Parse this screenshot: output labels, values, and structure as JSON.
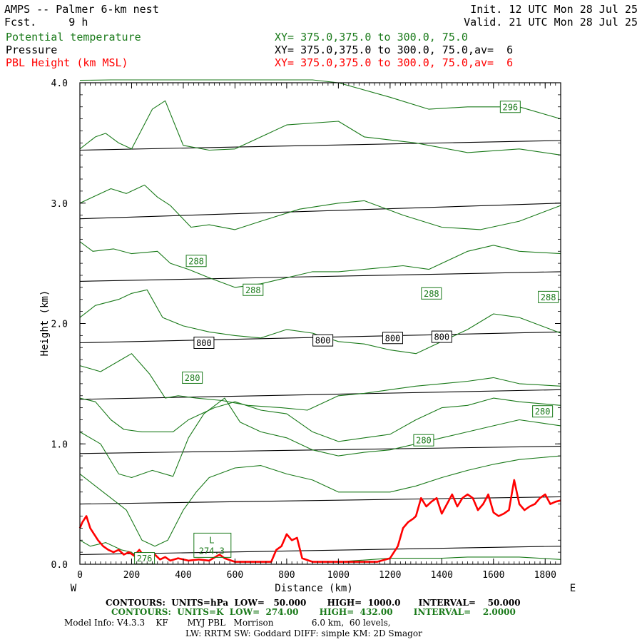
{
  "header": {
    "title": "AMPS -- Palmer 6-km nest",
    "fcst": "Fcst.     9 h",
    "init": "Init. 12 UTC Mon 28 Jul 25",
    "valid": "Valid. 21 UTC Mon 28 Jul 25",
    "fields": [
      {
        "name": "Potential temperature",
        "xy": "XY= 375.0,375.0 to 300.0, 75.0",
        "color": "#1a7a1a"
      },
      {
        "name": "Pressure",
        "xy": "XY= 375.0,375.0 to 300.0, 75.0,av=  6",
        "color": "#000000"
      },
      {
        "name": "PBL Height (km MSL)",
        "xy": "XY= 375.0,375.0 to 300.0, 75.0,av=  6",
        "color": "#ff0000"
      }
    ]
  },
  "footer": {
    "contours_p": "CONTOURS:  UNITS=hPa  LOW=   50.000       HIGH=  1000.0      INTERVAL=    50.000",
    "contours_t": "CONTOURS:  UNITS=K  LOW=  274.00       HIGH=  432.00       INTERVAL=    2.0000",
    "model1": "Model Info: V4.3.3    KF       MYJ PBL   Morrison              6.0 km,  60 levels,",
    "model2": "LW: RRTM SW: Goddard DIFF: simple KM: 2D Smagor"
  },
  "chart_data": {
    "type": "line",
    "xlabel": "Distance (km)",
    "ylabel": "Height (km)",
    "xlim": [
      0,
      1860
    ],
    "ylim": [
      0,
      4.0
    ],
    "x_ticks": [
      0,
      200,
      400,
      600,
      800,
      1000,
      1200,
      1400,
      1600,
      1800
    ],
    "x_tick_labels": [
      "0",
      "200",
      "400",
      "600",
      "800",
      "1000",
      "1200",
      "1400",
      "1600",
      "1800"
    ],
    "y_ticks": [
      0,
      1.0,
      2.0,
      3.0,
      4.0
    ],
    "y_tick_labels": [
      "0.0",
      "1.0",
      "2.0",
      "3.0",
      "4.0"
    ],
    "left_end_label": "W",
    "right_end_label": "E",
    "low_label": "L",
    "low_value": "274.3",
    "pressure_contours": [
      {
        "x": [
          0,
          1860
        ],
        "y": [
          3.44,
          3.52
        ]
      },
      {
        "x": [
          0,
          1860
        ],
        "y": [
          2.87,
          3.0
        ]
      },
      {
        "x": [
          0,
          1860
        ],
        "y": [
          2.35,
          2.43
        ]
      },
      {
        "x": [
          0,
          1860
        ],
        "y": [
          1.84,
          1.93
        ]
      },
      {
        "x": [
          0,
          1860
        ],
        "y": [
          1.37,
          1.45
        ]
      },
      {
        "x": [
          0,
          1860
        ],
        "y": [
          0.92,
          0.98
        ]
      },
      {
        "x": [
          0,
          1860
        ],
        "y": [
          0.5,
          0.56
        ]
      },
      {
        "x": [
          0,
          1860
        ],
        "y": [
          0.08,
          0.15
        ]
      }
    ],
    "pressure_labels": [
      {
        "x": 480,
        "y": 1.84,
        "text": "800"
      },
      {
        "x": 940,
        "y": 1.86,
        "text": "800"
      },
      {
        "x": 1210,
        "y": 1.88,
        "text": "800"
      },
      {
        "x": 1400,
        "y": 1.89,
        "text": "800"
      }
    ],
    "theta_contours": [
      {
        "x": [
          0,
          120,
          250,
          320,
          430,
          620,
          900,
          1000,
          1200,
          1350,
          1500,
          1700,
          1860
        ],
        "y": [
          4.02,
          4.05,
          4.04,
          4.03,
          4.05,
          4.08,
          4.03,
          4.0,
          3.88,
          3.78,
          3.8,
          3.8,
          3.7
        ]
      },
      {
        "x": [
          0,
          60,
          100,
          150,
          200,
          280,
          330,
          400,
          500,
          600,
          800,
          1000,
          1100,
          1300,
          1500,
          1700,
          1860
        ],
        "y": [
          3.45,
          3.55,
          3.58,
          3.5,
          3.45,
          3.78,
          3.85,
          3.48,
          3.44,
          3.45,
          3.65,
          3.68,
          3.55,
          3.5,
          3.42,
          3.45,
          3.4
        ]
      },
      {
        "x": [
          0,
          50,
          120,
          180,
          250,
          300,
          350,
          430,
          500,
          600,
          700,
          850,
          1000,
          1100,
          1250,
          1400,
          1550,
          1700,
          1860
        ],
        "y": [
          3.0,
          3.05,
          3.12,
          3.08,
          3.15,
          3.05,
          2.98,
          2.8,
          2.82,
          2.78,
          2.85,
          2.95,
          3.0,
          3.02,
          2.9,
          2.8,
          2.78,
          2.85,
          2.98
        ]
      },
      {
        "x": [
          0,
          50,
          130,
          200,
          300,
          350,
          420,
          500,
          600,
          700,
          800,
          900,
          1000,
          1100,
          1250,
          1350,
          1500,
          1600,
          1700,
          1860
        ],
        "y": [
          2.68,
          2.6,
          2.62,
          2.58,
          2.6,
          2.5,
          2.45,
          2.38,
          2.3,
          2.33,
          2.38,
          2.43,
          2.43,
          2.45,
          2.48,
          2.45,
          2.6,
          2.65,
          2.6,
          2.58
        ]
      },
      {
        "x": [
          0,
          60,
          150,
          200,
          260,
          320,
          400,
          500,
          600,
          700,
          800,
          900,
          1000,
          1100,
          1200,
          1300,
          1400,
          1500,
          1600,
          1700,
          1860
        ],
        "y": [
          2.05,
          2.15,
          2.2,
          2.25,
          2.28,
          2.05,
          1.98,
          1.93,
          1.9,
          1.88,
          1.95,
          1.92,
          1.85,
          1.83,
          1.78,
          1.75,
          1.85,
          1.95,
          2.08,
          2.05,
          1.92
        ]
      },
      {
        "x": [
          0,
          80,
          160,
          200,
          270,
          330,
          380,
          450,
          550,
          650,
          780,
          880,
          950,
          1000,
          1100,
          1200,
          1300,
          1400,
          1500,
          1600,
          1700,
          1860
        ],
        "y": [
          1.65,
          1.6,
          1.7,
          1.75,
          1.58,
          1.38,
          1.4,
          1.38,
          1.36,
          1.32,
          1.3,
          1.28,
          1.35,
          1.4,
          1.42,
          1.45,
          1.48,
          1.5,
          1.52,
          1.55,
          1.5,
          1.48
        ]
      },
      {
        "x": [
          0,
          60,
          120,
          170,
          240,
          300,
          360,
          420,
          520,
          600,
          700,
          800,
          900,
          1000,
          1100,
          1200,
          1300,
          1400,
          1500,
          1600,
          1700,
          1860
        ],
        "y": [
          1.38,
          1.35,
          1.2,
          1.12,
          1.1,
          1.1,
          1.1,
          1.2,
          1.3,
          1.35,
          1.28,
          1.25,
          1.1,
          1.02,
          1.05,
          1.08,
          1.2,
          1.3,
          1.32,
          1.38,
          1.35,
          1.32
        ]
      },
      {
        "x": [
          0,
          80,
          150,
          200,
          280,
          360,
          420,
          480,
          560,
          620,
          700,
          800,
          900,
          1000,
          1100,
          1200,
          1300,
          1400,
          1500,
          1600,
          1700,
          1860
        ],
        "y": [
          1.1,
          1.0,
          0.75,
          0.72,
          0.78,
          0.73,
          1.05,
          1.25,
          1.38,
          1.18,
          1.1,
          1.05,
          0.95,
          0.9,
          0.93,
          0.95,
          1.0,
          1.05,
          1.1,
          1.15,
          1.2,
          1.15
        ]
      },
      {
        "x": [
          0,
          60,
          120,
          180,
          240,
          290,
          340,
          400,
          450,
          500,
          600,
          700,
          800,
          900,
          1000,
          1100,
          1200,
          1300,
          1400,
          1500,
          1600,
          1700,
          1860
        ],
        "y": [
          0.75,
          0.65,
          0.55,
          0.45,
          0.2,
          0.15,
          0.2,
          0.45,
          0.6,
          0.72,
          0.8,
          0.82,
          0.75,
          0.7,
          0.6,
          0.6,
          0.6,
          0.65,
          0.72,
          0.78,
          0.83,
          0.87,
          0.9
        ]
      },
      {
        "x": [
          0,
          40,
          100,
          160,
          200,
          220
        ],
        "y": [
          0.2,
          0.15,
          0.18,
          0.12,
          0.1,
          0.05
        ]
      },
      {
        "x": [
          1000,
          1200,
          1400,
          1500,
          1600,
          1700,
          1860
        ],
        "y": [
          0.02,
          0.05,
          0.05,
          0.06,
          0.06,
          0.06,
          0.04
        ]
      }
    ],
    "theta_labels": [
      {
        "x": 1665,
        "y": 3.8,
        "text": "296"
      },
      {
        "x": 450,
        "y": 2.52,
        "text": "288"
      },
      {
        "x": 670,
        "y": 2.28,
        "text": "288"
      },
      {
        "x": 1360,
        "y": 2.25,
        "text": "288"
      },
      {
        "x": 1812,
        "y": 2.22,
        "text": "288"
      },
      {
        "x": 435,
        "y": 1.55,
        "text": "280"
      },
      {
        "x": 1790,
        "y": 1.27,
        "text": "280"
      },
      {
        "x": 1330,
        "y": 1.03,
        "text": "280"
      },
      {
        "x": 250,
        "y": 0.05,
        "text": "276"
      }
    ],
    "pbl_height": {
      "x": [
        0,
        10,
        25,
        40,
        55,
        70,
        90,
        110,
        130,
        150,
        170,
        190,
        210,
        230,
        250,
        270,
        290,
        310,
        330,
        350,
        380,
        420,
        460,
        500,
        540,
        560,
        600,
        650,
        700,
        740,
        760,
        780,
        800,
        820,
        840,
        860,
        900,
        950,
        1000,
        1050,
        1100,
        1150,
        1200,
        1230,
        1250,
        1270,
        1290,
        1300,
        1320,
        1340,
        1360,
        1380,
        1400,
        1420,
        1440,
        1460,
        1480,
        1500,
        1520,
        1540,
        1560,
        1580,
        1600,
        1620,
        1640,
        1660,
        1680,
        1700,
        1720,
        1740,
        1760,
        1780,
        1800,
        1820,
        1840,
        1860
      ],
      "y": [
        0.3,
        0.35,
        0.4,
        0.3,
        0.25,
        0.2,
        0.15,
        0.12,
        0.1,
        0.12,
        0.08,
        0.1,
        0.07,
        0.12,
        0.06,
        0.05,
        0.08,
        0.04,
        0.06,
        0.03,
        0.05,
        0.03,
        0.04,
        0.03,
        0.08,
        0.05,
        0.02,
        0.02,
        0.02,
        0.02,
        0.12,
        0.15,
        0.25,
        0.2,
        0.22,
        0.05,
        0.02,
        0.02,
        0.02,
        0.02,
        0.02,
        0.02,
        0.05,
        0.15,
        0.3,
        0.35,
        0.38,
        0.4,
        0.55,
        0.48,
        0.52,
        0.55,
        0.42,
        0.5,
        0.58,
        0.48,
        0.55,
        0.58,
        0.55,
        0.45,
        0.5,
        0.58,
        0.43,
        0.4,
        0.42,
        0.45,
        0.7,
        0.5,
        0.45,
        0.48,
        0.5,
        0.55,
        0.58,
        0.5,
        0.52,
        0.53
      ]
    }
  }
}
